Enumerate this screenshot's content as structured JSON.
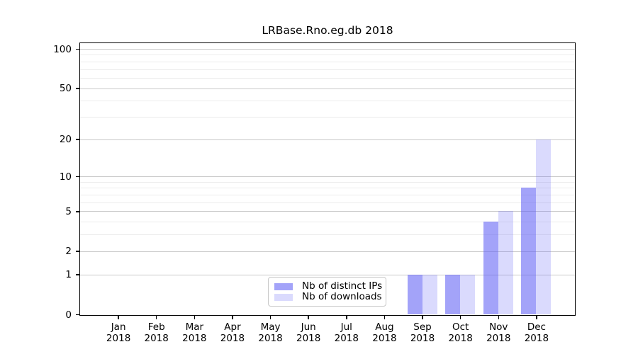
{
  "chart_data": {
    "type": "bar",
    "title": "LRBase.Rno.eg.db 2018",
    "categories": [
      "Jan",
      "Feb",
      "Mar",
      "Apr",
      "May",
      "Jun",
      "Jul",
      "Aug",
      "Sep",
      "Oct",
      "Nov",
      "Dec"
    ],
    "category_year": "2018",
    "series": [
      {
        "name": "Nb of distinct IPs",
        "color": "rgba(102,102,245,0.6)",
        "color_hex": "#a6a6f6",
        "values": [
          0,
          0,
          0,
          0,
          0,
          0,
          0,
          0,
          1,
          1,
          4,
          8
        ]
      },
      {
        "name": "Nb of downloads",
        "color": "rgba(102,102,245,0.24)",
        "color_hex": "#dadaf9",
        "values": [
          0,
          0,
          0,
          0,
          0,
          0,
          0,
          0,
          1,
          1,
          5,
          20
        ]
      }
    ],
    "y_axis": {
      "scale": "log1p",
      "ticks": [
        0,
        1,
        2,
        5,
        10,
        20,
        50,
        100
      ],
      "minor_gridlines": [
        3,
        4,
        6,
        7,
        8,
        9,
        30,
        40,
        60,
        70,
        80,
        90
      ]
    },
    "x_axis": {
      "tick_count": 12
    },
    "legend": {
      "position": "lower center"
    },
    "grid": "horizontal",
    "colors": {
      "major_grid": "#c9c9c9",
      "minor_grid": "#ececec",
      "spine": "#000000"
    }
  }
}
